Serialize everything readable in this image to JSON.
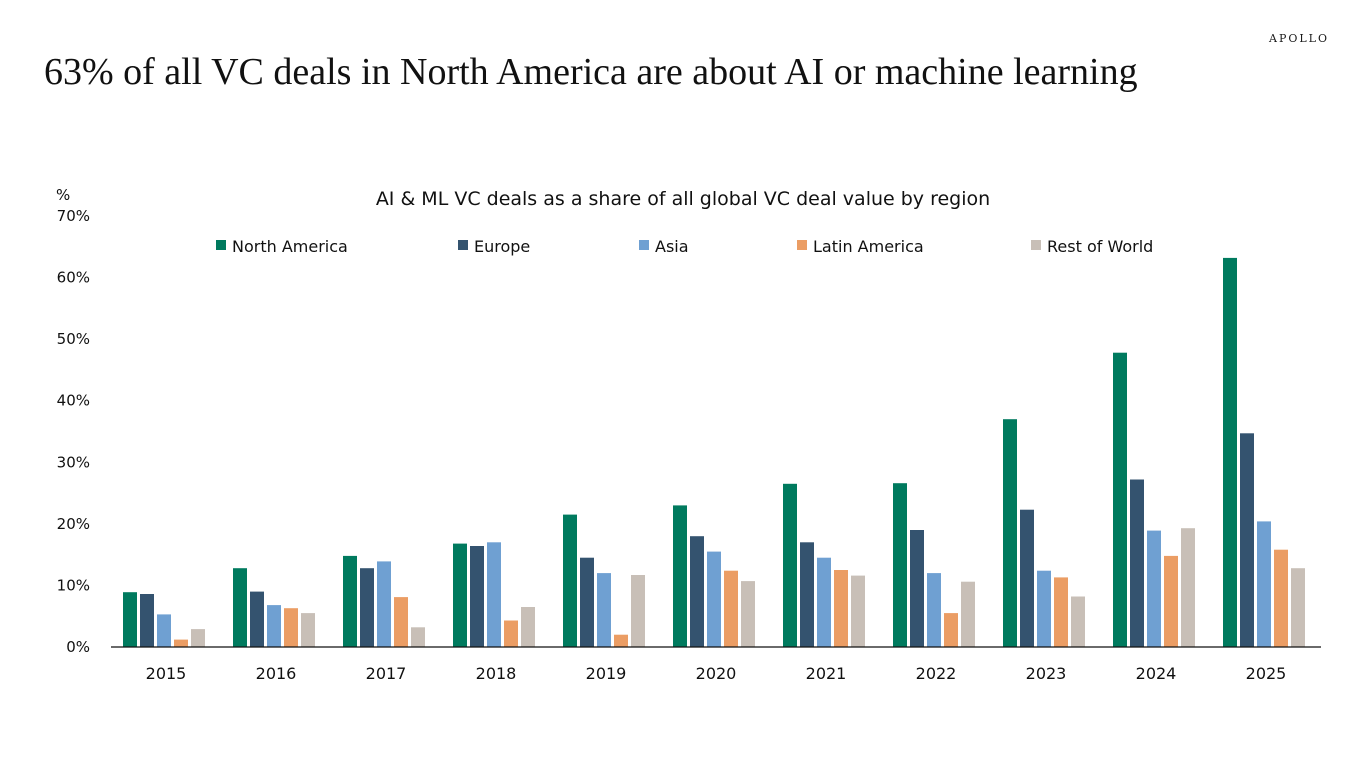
{
  "brand": {
    "logo_text": "APOLLO"
  },
  "headline": "63% of all VC deals in North America are about AI or machine learning",
  "chart_data": {
    "type": "bar",
    "title": "AI & ML VC deals as a share of all global VC deal value by region",
    "ylabel": "%",
    "xlabel": "",
    "ylim": [
      0,
      70
    ],
    "yticks": [
      0,
      10,
      20,
      30,
      40,
      50,
      60,
      70
    ],
    "ytick_labels": [
      "0%",
      "10%",
      "20%",
      "30%",
      "40%",
      "50%",
      "60%",
      "70%"
    ],
    "grid": false,
    "legend_position": "top",
    "categories": [
      "2015",
      "2016",
      "2017",
      "2018",
      "2019",
      "2020",
      "2021",
      "2022",
      "2023",
      "2024",
      "2025"
    ],
    "series": [
      {
        "name": "North America",
        "color": "#007A5E",
        "values": [
          8.9,
          12.8,
          14.8,
          16.8,
          21.5,
          23.0,
          26.5,
          26.6,
          37.0,
          47.8,
          63.2
        ]
      },
      {
        "name": "Europe",
        "color": "#34536F",
        "values": [
          8.6,
          9.0,
          12.8,
          16.4,
          14.5,
          18.0,
          17.0,
          19.0,
          22.3,
          27.2,
          34.7
        ]
      },
      {
        "name": "Asia",
        "color": "#6FA0D2",
        "values": [
          5.3,
          6.8,
          13.9,
          17.0,
          12.0,
          15.5,
          14.5,
          12.0,
          12.4,
          18.9,
          20.4
        ]
      },
      {
        "name": "Latin America",
        "color": "#EB9D64",
        "values": [
          1.2,
          6.3,
          8.1,
          4.3,
          2.0,
          12.4,
          12.5,
          5.5,
          11.3,
          14.8,
          15.8
        ]
      },
      {
        "name": "Rest of World",
        "color": "#C8BFB7",
        "values": [
          2.9,
          5.5,
          3.2,
          6.5,
          11.7,
          10.7,
          11.6,
          10.6,
          8.2,
          19.3,
          12.8
        ]
      }
    ]
  }
}
